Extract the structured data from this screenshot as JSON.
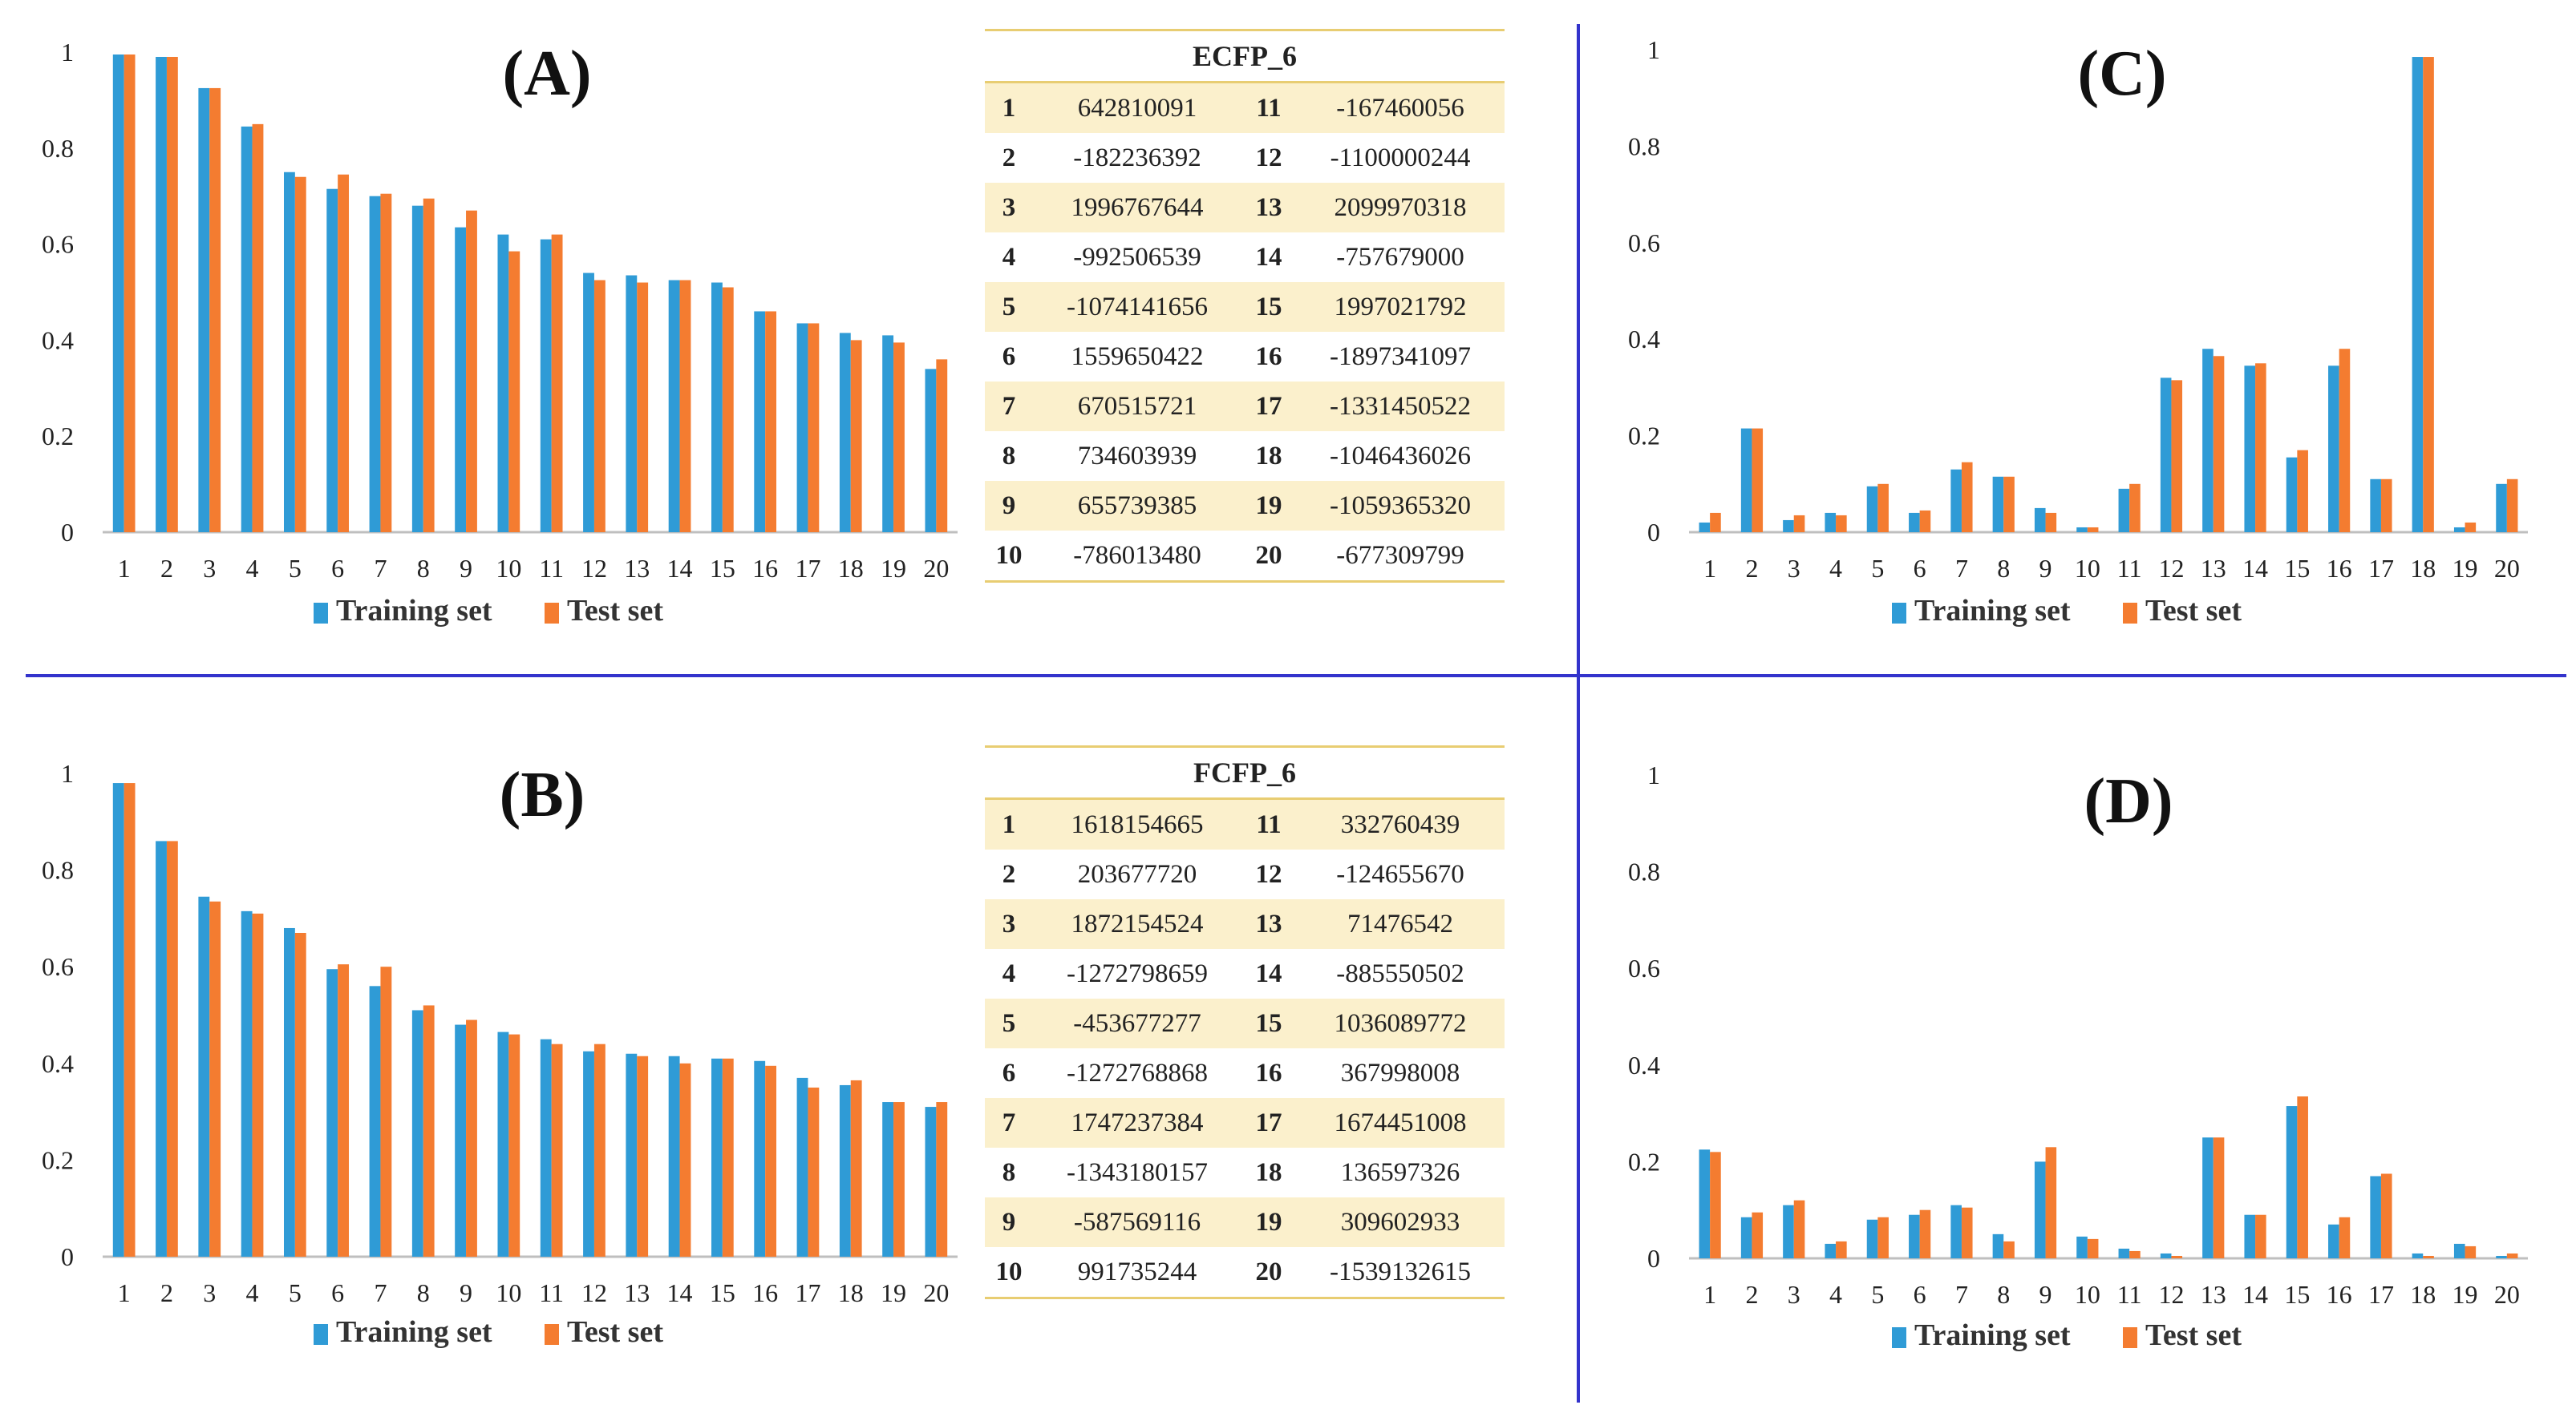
{
  "colors": {
    "training": "#2f9bd6",
    "test": "#f47c30",
    "axis": "#bfbfbf",
    "divider": "#3333cc",
    "table_rule": "#e8cd72",
    "table_shade": "#fbf0cc"
  },
  "chart_data": [
    {
      "id": "A",
      "type": "bar",
      "title": "(A)",
      "categories": [
        "1",
        "2",
        "3",
        "4",
        "5",
        "6",
        "7",
        "8",
        "9",
        "10",
        "11",
        "12",
        "13",
        "14",
        "15",
        "16",
        "17",
        "18",
        "19",
        "20"
      ],
      "ylim": [
        0,
        1
      ],
      "yticks": [
        "0",
        "0.2",
        "0.4",
        "0.6",
        "0.8",
        "1"
      ],
      "series": [
        {
          "name": "Training set",
          "values": [
            0.995,
            0.99,
            0.925,
            0.845,
            0.75,
            0.715,
            0.7,
            0.68,
            0.635,
            0.62,
            0.61,
            0.54,
            0.535,
            0.525,
            0.52,
            0.46,
            0.435,
            0.415,
            0.41,
            0.34
          ]
        },
        {
          "name": "Test set",
          "values": [
            0.995,
            0.99,
            0.925,
            0.85,
            0.74,
            0.745,
            0.705,
            0.695,
            0.67,
            0.585,
            0.62,
            0.525,
            0.52,
            0.525,
            0.51,
            0.46,
            0.435,
            0.4,
            0.395,
            0.36
          ]
        }
      ],
      "legend": [
        "Training set",
        "Test set"
      ]
    },
    {
      "id": "B",
      "type": "bar",
      "title": "(B)",
      "categories": [
        "1",
        "2",
        "3",
        "4",
        "5",
        "6",
        "7",
        "8",
        "9",
        "10",
        "11",
        "12",
        "13",
        "14",
        "15",
        "16",
        "17",
        "18",
        "19",
        "20"
      ],
      "ylim": [
        0,
        1
      ],
      "yticks": [
        "0",
        "0.2",
        "0.4",
        "0.6",
        "0.8",
        "1"
      ],
      "series": [
        {
          "name": "Training set",
          "values": [
            0.98,
            0.86,
            0.745,
            0.715,
            0.68,
            0.595,
            0.56,
            0.51,
            0.48,
            0.465,
            0.45,
            0.425,
            0.42,
            0.415,
            0.41,
            0.405,
            0.37,
            0.355,
            0.32,
            0.31
          ]
        },
        {
          "name": "Test set",
          "values": [
            0.98,
            0.86,
            0.735,
            0.71,
            0.67,
            0.605,
            0.6,
            0.52,
            0.49,
            0.46,
            0.44,
            0.44,
            0.415,
            0.4,
            0.41,
            0.395,
            0.35,
            0.365,
            0.32,
            0.32
          ]
        }
      ],
      "legend": [
        "Training set",
        "Test set"
      ]
    },
    {
      "id": "C",
      "type": "bar",
      "title": "(C)",
      "categories": [
        "1",
        "2",
        "3",
        "4",
        "5",
        "6",
        "7",
        "8",
        "9",
        "10",
        "11",
        "12",
        "13",
        "14",
        "15",
        "16",
        "17",
        "18",
        "19",
        "20"
      ],
      "ylim": [
        0,
        1
      ],
      "yticks": [
        "0",
        "0.2",
        "0.4",
        "0.6",
        "0.8",
        "1"
      ],
      "series": [
        {
          "name": "Training set",
          "values": [
            0.02,
            0.215,
            0.025,
            0.04,
            0.095,
            0.04,
            0.13,
            0.115,
            0.05,
            0.01,
            0.09,
            0.32,
            0.38,
            0.345,
            0.155,
            0.345,
            0.11,
            0.985,
            0.01,
            0.1
          ]
        },
        {
          "name": "Test set",
          "values": [
            0.04,
            0.215,
            0.035,
            0.035,
            0.1,
            0.045,
            0.145,
            0.115,
            0.04,
            0.01,
            0.1,
            0.315,
            0.365,
            0.35,
            0.17,
            0.38,
            0.11,
            0.985,
            0.02,
            0.11
          ]
        }
      ],
      "legend": [
        "Training set",
        "Test set"
      ]
    },
    {
      "id": "D",
      "type": "bar",
      "title": "(D)",
      "categories": [
        "1",
        "2",
        "3",
        "4",
        "5",
        "6",
        "7",
        "8",
        "9",
        "10",
        "11",
        "12",
        "13",
        "14",
        "15",
        "16",
        "17",
        "18",
        "19",
        "20"
      ],
      "ylim": [
        0,
        1
      ],
      "yticks": [
        "0",
        "0.2",
        "0.4",
        "0.6",
        "0.8",
        "1"
      ],
      "series": [
        {
          "name": "Training set",
          "values": [
            0.225,
            0.085,
            0.11,
            0.03,
            0.08,
            0.09,
            0.11,
            0.05,
            0.2,
            0.045,
            0.02,
            0.01,
            0.25,
            0.09,
            0.315,
            0.07,
            0.17,
            0.01,
            0.03,
            0.005
          ]
        },
        {
          "name": "Test set",
          "values": [
            0.22,
            0.095,
            0.12,
            0.035,
            0.085,
            0.1,
            0.105,
            0.035,
            0.23,
            0.04,
            0.015,
            0.005,
            0.25,
            0.09,
            0.335,
            0.085,
            0.175,
            0.005,
            0.025,
            0.01
          ]
        }
      ],
      "legend": [
        "Training set",
        "Test set"
      ]
    }
  ],
  "tables": {
    "ecfp": {
      "title": "ECFP_6",
      "rows": [
        [
          "1",
          "642810091",
          "11",
          "-167460056"
        ],
        [
          "2",
          "-182236392",
          "12",
          "-1100000244"
        ],
        [
          "3",
          "1996767644",
          "13",
          "2099970318"
        ],
        [
          "4",
          "-992506539",
          "14",
          "-757679000"
        ],
        [
          "5",
          "-1074141656",
          "15",
          "1997021792"
        ],
        [
          "6",
          "1559650422",
          "16",
          "-1897341097"
        ],
        [
          "7",
          "670515721",
          "17",
          "-1331450522"
        ],
        [
          "8",
          "734603939",
          "18",
          "-1046436026"
        ],
        [
          "9",
          "655739385",
          "19",
          "-1059365320"
        ],
        [
          "10",
          "-786013480",
          "20",
          "-677309799"
        ]
      ]
    },
    "fcfp": {
      "title": "FCFP_6",
      "rows": [
        [
          "1",
          "1618154665",
          "11",
          "332760439"
        ],
        [
          "2",
          "203677720",
          "12",
          "-124655670"
        ],
        [
          "3",
          "1872154524",
          "13",
          "71476542"
        ],
        [
          "4",
          "-1272798659",
          "14",
          "-885550502"
        ],
        [
          "5",
          "-453677277",
          "15",
          "1036089772"
        ],
        [
          "6",
          "-1272768868",
          "16",
          "367998008"
        ],
        [
          "7",
          "1747237384",
          "17",
          "1674451008"
        ],
        [
          "8",
          "-1343180157",
          "18",
          "136597326"
        ],
        [
          "9",
          "-587569116",
          "19",
          "309602933"
        ],
        [
          "10",
          "991735244",
          "20",
          "-1539132615"
        ]
      ]
    }
  }
}
